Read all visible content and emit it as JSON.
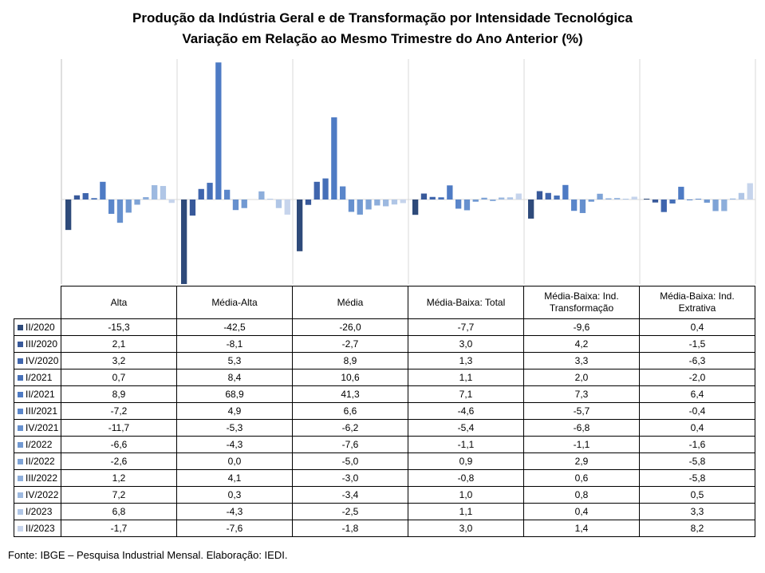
{
  "chart_data": {
    "type": "bar",
    "title": "Produção da Indústria Geral e de Transformação por Intensidade Tecnológica",
    "subtitle": "Variação em Relação ao Mesmo Trimestre do Ano Anterior (%)",
    "categories": [
      "Alta",
      "Média-Alta",
      "Média",
      "Média-Baixa: Total",
      "Média-Baixa: Ind. Transformação",
      "Média-Baixa: Ind. Extrativa"
    ],
    "ylim": [
      -43,
      69
    ],
    "grid": false,
    "legend_position": "table-left",
    "series": [
      {
        "name": "II/2020",
        "color": "#2e4a7a",
        "values": [
          "-15,3",
          "-42,5",
          "-26,0",
          "-7,7",
          "-9,6",
          "0,4"
        ]
      },
      {
        "name": "III/2020",
        "color": "#38599a",
        "values": [
          "2,1",
          "-8,1",
          "-2,7",
          "3,0",
          "4,2",
          "-1,5"
        ]
      },
      {
        "name": "IV/2020",
        "color": "#3f65ad",
        "values": [
          "3,2",
          "5,3",
          "8,9",
          "1,3",
          "3,3",
          "-6,3"
        ]
      },
      {
        "name": "I/2021",
        "color": "#4670b8",
        "values": [
          "0,7",
          "8,4",
          "10,6",
          "1,1",
          "2,0",
          "-2,0"
        ]
      },
      {
        "name": "II/2021",
        "color": "#4e7bc4",
        "values": [
          "8,9",
          "68,9",
          "41,3",
          "7,1",
          "7,3",
          "6,4"
        ]
      },
      {
        "name": "III/2021",
        "color": "#5a86ca",
        "values": [
          "-7,2",
          "4,9",
          "6,6",
          "-4,6",
          "-5,7",
          "-0,4"
        ]
      },
      {
        "name": "IV/2021",
        "color": "#6690ce",
        "values": [
          "-11,7",
          "-5,3",
          "-6,2",
          "-5,4",
          "-6,8",
          "0,4"
        ]
      },
      {
        "name": "I/2022",
        "color": "#7199d2",
        "values": [
          "-6,6",
          "-4,3",
          "-7,6",
          "-1,1",
          "-1,1",
          "-1,6"
        ]
      },
      {
        "name": "II/2022",
        "color": "#7ea3d6",
        "values": [
          "-2,6",
          "0,0",
          "-5,0",
          "0,9",
          "2,9",
          "-5,8"
        ]
      },
      {
        "name": "III/2022",
        "color": "#8daedb",
        "values": [
          "1,2",
          "4,1",
          "-3,0",
          "-0,8",
          "0,6",
          "-5,8"
        ]
      },
      {
        "name": "IV/2022",
        "color": "#9db9e0",
        "values": [
          "7,2",
          "0,3",
          "-3,4",
          "1,0",
          "0,8",
          "0,5"
        ]
      },
      {
        "name": "I/2023",
        "color": "#b0c6e6",
        "values": [
          "6,8",
          "-4,3",
          "-2,5",
          "1,1",
          "0,4",
          "3,3"
        ]
      },
      {
        "name": "II/2023",
        "color": "#c6d4ec",
        "values": [
          "-1,7",
          "-7,6",
          "-1,8",
          "3,0",
          "1,4",
          "8,2"
        ]
      }
    ]
  },
  "table_headers": [
    [
      "Alta"
    ],
    [
      "Média-Alta"
    ],
    [
      "Média"
    ],
    [
      "Média-Baixa: Total"
    ],
    [
      "Média-Baixa: Ind.",
      "Transformação"
    ],
    [
      "Média-Baixa: Ind.",
      "Extrativa"
    ]
  ],
  "source": "Fonte: IBGE – Pesquisa Industrial Mensal. Elaboração: IEDI."
}
